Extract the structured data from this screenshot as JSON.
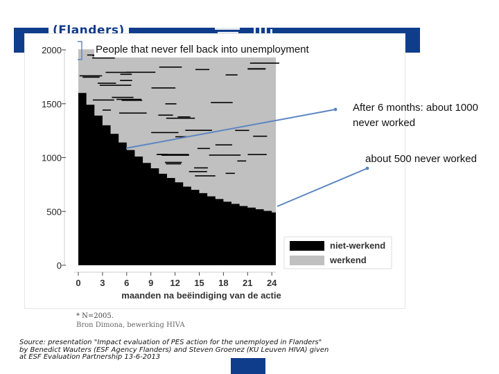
{
  "slide": {
    "title": "(Flanders)",
    "callouts": [
      "People that never fell back into unemployment",
      "After 6 months: about 1000 never worked",
      "about 500 never worked"
    ],
    "note": "* N=2005.",
    "note_source": "Bron Dimona, bewerking HIVA",
    "source": "Source: presentation \"Impact evaluation of PES action for the unemployed in Flanders\" by Benedict Wauters (ESF Agency Flanders) and Steven Groenez (KU Leuven HIVA) given at ESF Evaluation Partnership 13-6-2013",
    "colors": {
      "brand_blue": "#0f3d8c",
      "title_blue": "#123a8a",
      "arrow": "#5b86c2"
    }
  },
  "chart_data": {
    "type": "area",
    "xlabel": "maanden na beëindiging van de actie",
    "ylabel": "",
    "x_ticks": [
      0,
      3,
      6,
      9,
      12,
      15,
      18,
      21,
      24
    ],
    "y_ticks": [
      0,
      500,
      1000,
      1500,
      2000
    ],
    "xlim": [
      0,
      24.5
    ],
    "ylim": [
      0,
      2000
    ],
    "legend": {
      "position": "bottom-right",
      "entries": [
        "niet-werkend",
        "werkend"
      ]
    },
    "series": [
      {
        "name": "niet-werkend",
        "color": "#000000",
        "x": [
          0,
          1,
          2,
          3,
          4,
          5,
          6,
          7,
          8,
          9,
          10,
          11,
          12,
          13,
          14,
          15,
          16,
          17,
          18,
          19,
          20,
          21,
          22,
          23,
          24
        ],
        "values": [
          1600,
          1490,
          1390,
          1300,
          1220,
          1140,
          1070,
          1010,
          950,
          900,
          850,
          810,
          770,
          730,
          700,
          670,
          640,
          615,
          590,
          570,
          550,
          535,
          520,
          505,
          490
        ]
      },
      {
        "name": "werkend",
        "color": "#c0c0c0",
        "x": [
          0,
          24
        ],
        "values": [
          2005,
          2005
        ]
      }
    ]
  }
}
